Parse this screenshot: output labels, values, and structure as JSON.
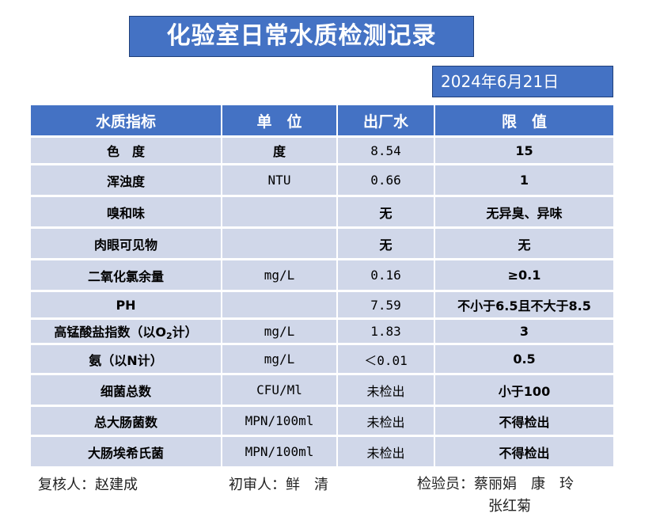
{
  "title": "化验室日常水质检测记录",
  "date": "2024年6月21日",
  "table": {
    "headers": [
      "水质指标",
      "单　位",
      "出厂水",
      "限　值"
    ],
    "rows": [
      {
        "name": "色　度",
        "unit": "度",
        "value": "8.54",
        "limit": "15"
      },
      {
        "name": "浑浊度",
        "unit": "NTU",
        "value": "0.66",
        "limit": "1"
      },
      {
        "name": "嗅和味",
        "unit": "",
        "value": "无",
        "limit": "无异臭、异味"
      },
      {
        "name": "肉眼可见物",
        "unit": "",
        "value": "无",
        "limit": "无"
      },
      {
        "name": "二氧化氯余量",
        "unit": "mg/L",
        "value": "0.16",
        "limit": "≥0.1"
      },
      {
        "name": "PH",
        "unit": "",
        "value": "7.59",
        "limit": "不小于6.5且不大于8.5"
      },
      {
        "name_pre": "高锰酸盐指数（以O",
        "name_sub": "2",
        "name_post": "计）",
        "unit": "mg/L",
        "value": "1.83",
        "limit": "3"
      },
      {
        "name": "氨（以N计）",
        "unit": "mg/L",
        "value": "＜0.01",
        "limit": "0.5"
      },
      {
        "name": "细菌总数",
        "unit": "CFU/Ml",
        "value": "未检出",
        "limit": "小于100"
      },
      {
        "name": "总大肠菌数",
        "unit": "MPN/100ml",
        "value": "未检出",
        "limit": "不得检出"
      },
      {
        "name": "大肠埃希氏菌",
        "unit": "MPN/100ml",
        "value": "未检出",
        "limit": "不得检出"
      }
    ]
  },
  "footer": {
    "reviewer": "复核人：赵建成",
    "first_review": "初审人：鲜　清",
    "inspectors": "检验员：蔡丽娟　康　玲",
    "inspectors_line2": "张红菊"
  }
}
